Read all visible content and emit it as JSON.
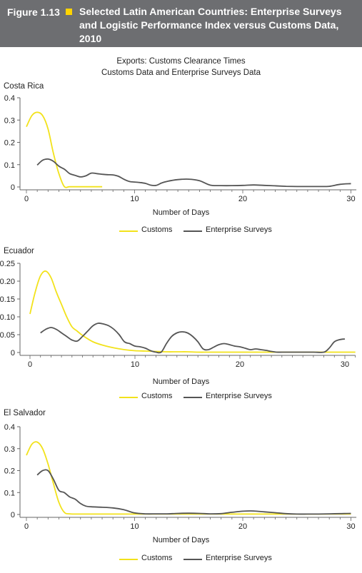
{
  "header": {
    "figure_number": "Figure 1.13",
    "title": "Selected Latin American Countries: Enterprise Surveys and Logistic Performance Index versus Customs Data, 2010"
  },
  "main_title": {
    "line1": "Exports: Customs Clearance Times",
    "line2": "Customs Data and Enterprise Surveys Data"
  },
  "colors": {
    "customs": "#f2e21b",
    "enterprise": "#555555",
    "header_bg": "#6d6e71",
    "accent": "#ffd400"
  },
  "chart_data": [
    {
      "type": "line",
      "title": "Costa Rica",
      "xlabel": "Number of Days",
      "ylabel": "",
      "xlim": [
        0,
        30.5
      ],
      "ylim": [
        0,
        0.4
      ],
      "x_ticks": [
        "0",
        "10",
        "20",
        "30"
      ],
      "y_ticks": [
        "0",
        "0.1",
        "0.2",
        "0.3",
        "0.4"
      ],
      "series": [
        {
          "name": "Customs",
          "color": "#f2e21b",
          "x": [
            0,
            0.5,
            1,
            1.5,
            2,
            2.5,
            3,
            3.5,
            4,
            5,
            6,
            7
          ],
          "y": [
            0.27,
            0.32,
            0.335,
            0.32,
            0.26,
            0.15,
            0.06,
            0.002,
            0.001,
            0.001,
            0.001,
            0.001
          ]
        },
        {
          "name": "Enterprise Surveys",
          "color": "#555555",
          "x": [
            1,
            1.5,
            2,
            2.5,
            3,
            3.5,
            4,
            4.5,
            5,
            5.5,
            6,
            6.5,
            7,
            7.5,
            8,
            8.5,
            9,
            9.5,
            10,
            10.5,
            11,
            11.5,
            12,
            12.5,
            13,
            14,
            15,
            16,
            17,
            18,
            19,
            20,
            21,
            22,
            23,
            24,
            25,
            26,
            27,
            28,
            29,
            30
          ],
          "y": [
            0.098,
            0.12,
            0.125,
            0.115,
            0.093,
            0.08,
            0.06,
            0.052,
            0.045,
            0.05,
            0.062,
            0.06,
            0.057,
            0.055,
            0.054,
            0.048,
            0.035,
            0.025,
            0.022,
            0.02,
            0.016,
            0.008,
            0.007,
            0.018,
            0.025,
            0.033,
            0.035,
            0.028,
            0.008,
            0.006,
            0.006,
            0.007,
            0.009,
            0.007,
            0.005,
            0.003,
            0.002,
            0.002,
            0.002,
            0.003,
            0.012,
            0.015
          ]
        }
      ],
      "legend_position": "bottom"
    },
    {
      "type": "line",
      "title": "Ecuador",
      "xlabel": "Number of Days",
      "ylabel": "",
      "xlim": [
        0,
        31
      ],
      "ylim": [
        0,
        0.25
      ],
      "x_ticks": [
        "0",
        "10",
        "20",
        "30"
      ],
      "y_ticks": [
        "0",
        "0.05",
        "0.10",
        "0.15",
        "0.20",
        "0.25"
      ],
      "series": [
        {
          "name": "Customs",
          "color": "#f2e21b",
          "x": [
            0,
            0.5,
            1,
            1.5,
            2,
            2.5,
            3,
            3.5,
            4,
            4.5,
            5,
            6,
            7,
            8,
            9,
            10,
            11,
            12,
            13,
            14,
            15,
            16,
            17,
            18,
            19,
            20,
            21,
            22,
            23,
            24,
            25,
            26,
            27,
            28,
            29,
            30,
            31
          ],
          "y": [
            0.108,
            0.17,
            0.215,
            0.228,
            0.21,
            0.17,
            0.135,
            0.1,
            0.072,
            0.06,
            0.048,
            0.03,
            0.02,
            0.013,
            0.008,
            0.005,
            0.004,
            0.003,
            0.002,
            0.002,
            0.002,
            0.001,
            0.001,
            0.001,
            0.001,
            0.001,
            0.001,
            0.001,
            0.001,
            0.001,
            0.001,
            0.001,
            0.001,
            0.001,
            0.001,
            0.001,
            0.001
          ]
        },
        {
          "name": "Enterprise Surveys",
          "color": "#555555",
          "x": [
            1,
            1.5,
            2,
            2.5,
            3,
            3.5,
            4,
            4.5,
            5,
            5.5,
            6,
            6.5,
            7,
            7.5,
            8,
            8.5,
            9,
            9.5,
            10,
            10.5,
            11,
            11.5,
            12,
            12.5,
            13,
            13.5,
            14,
            14.5,
            15,
            15.5,
            16,
            16.5,
            17,
            17.5,
            18,
            18.5,
            19,
            19.5,
            20,
            20.5,
            21,
            21.5,
            22,
            22.5,
            23,
            23.5,
            24,
            24.5,
            25,
            25.5,
            26,
            27,
            28,
            28.5,
            29,
            29.5,
            30
          ],
          "y": [
            0.055,
            0.065,
            0.07,
            0.065,
            0.055,
            0.045,
            0.035,
            0.032,
            0.045,
            0.06,
            0.075,
            0.082,
            0.08,
            0.075,
            0.065,
            0.05,
            0.03,
            0.025,
            0.018,
            0.016,
            0.012,
            0.005,
            0.001,
            0.001,
            0.025,
            0.045,
            0.055,
            0.058,
            0.055,
            0.045,
            0.03,
            0.01,
            0.008,
            0.015,
            0.022,
            0.025,
            0.022,
            0.018,
            0.016,
            0.012,
            0.008,
            0.01,
            0.008,
            0.006,
            0.003,
            0.001,
            0.001,
            0.001,
            0.001,
            0.001,
            0.001,
            0.001,
            0.001,
            0.012,
            0.03,
            0.036,
            0.038
          ]
        }
      ],
      "legend_position": "bottom"
    },
    {
      "type": "line",
      "title": "El Salvador",
      "xlabel": "Number of Days",
      "ylabel": "",
      "xlim": [
        0,
        30.5
      ],
      "ylim": [
        0,
        0.4
      ],
      "x_ticks": [
        "0",
        "10",
        "20",
        "30"
      ],
      "y_ticks": [
        "0",
        "0.1",
        "0.2",
        "0.3",
        "0.4"
      ],
      "series": [
        {
          "name": "Customs",
          "color": "#f2e21b",
          "x": [
            0,
            0.5,
            1,
            1.5,
            2,
            2.5,
            3,
            3.5,
            4,
            5,
            6,
            7,
            8,
            9,
            10,
            11,
            12,
            13,
            14,
            15,
            16,
            17,
            18,
            19,
            20,
            21,
            22,
            23,
            24,
            25,
            26,
            27,
            28,
            29,
            30
          ],
          "y": [
            0.27,
            0.32,
            0.33,
            0.3,
            0.23,
            0.14,
            0.055,
            0.01,
            0.003,
            0.002,
            0.002,
            0.002,
            0.002,
            0.002,
            0.002,
            0.002,
            0.002,
            0.002,
            0.002,
            0.002,
            0.002,
            0.002,
            0.002,
            0.002,
            0.002,
            0.002,
            0.002,
            0.002,
            0.002,
            0.002,
            0.002,
            0.002,
            0.002,
            0.002,
            0.002
          ]
        },
        {
          "name": "Enterprise Surveys",
          "color": "#555555",
          "x": [
            1,
            1.5,
            2,
            2.5,
            3,
            3.5,
            4,
            4.5,
            5,
            5.5,
            6,
            7,
            8,
            9,
            10,
            11,
            12,
            13,
            14,
            15,
            16,
            17,
            18,
            19,
            20,
            21,
            22,
            23,
            24,
            25,
            26,
            27,
            28,
            29,
            30
          ],
          "y": [
            0.18,
            0.2,
            0.2,
            0.16,
            0.11,
            0.1,
            0.08,
            0.07,
            0.05,
            0.038,
            0.035,
            0.033,
            0.03,
            0.022,
            0.007,
            0.003,
            0.003,
            0.003,
            0.005,
            0.006,
            0.005,
            0.003,
            0.004,
            0.01,
            0.015,
            0.016,
            0.012,
            0.008,
            0.004,
            0.002,
            0.002,
            0.002,
            0.003,
            0.004,
            0.005
          ]
        }
      ],
      "legend_position": "bottom"
    }
  ]
}
